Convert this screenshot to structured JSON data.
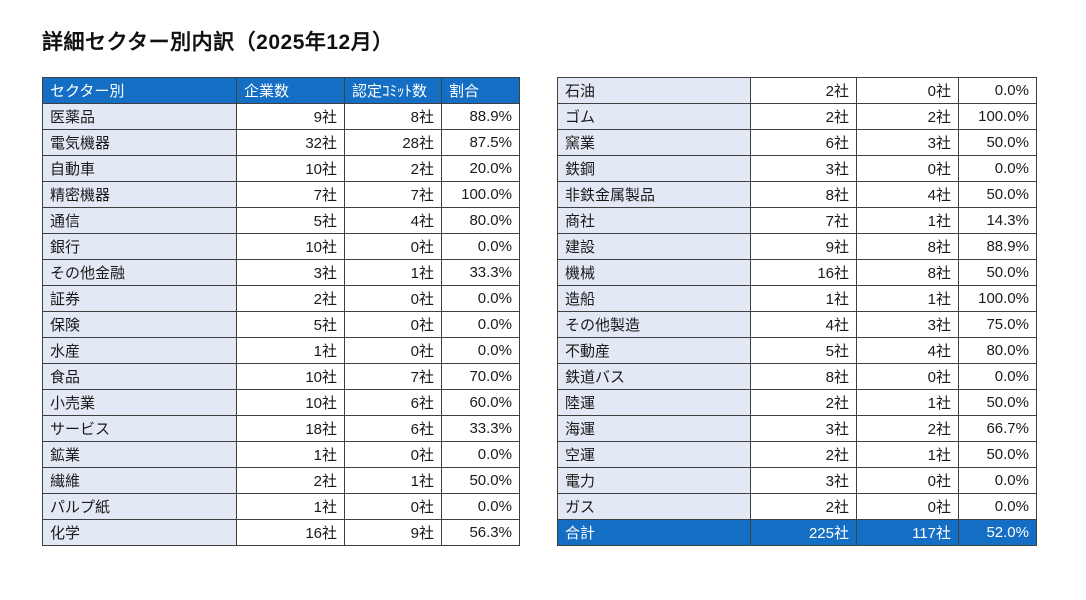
{
  "title": "詳細セクター別内訳（2025年12月）",
  "columns": [
    "セクター別",
    "企業数",
    "認定ｺﾐｯﾄ数",
    "割合"
  ],
  "left_table": {
    "rows": [
      [
        "医薬品",
        "9社",
        "8社",
        "88.9%"
      ],
      [
        "電気機器",
        "32社",
        "28社",
        "87.5%"
      ],
      [
        "自動車",
        "10社",
        "2社",
        "20.0%"
      ],
      [
        "精密機器",
        "7社",
        "7社",
        "100.0%"
      ],
      [
        "通信",
        "5社",
        "4社",
        "80.0%"
      ],
      [
        "銀行",
        "10社",
        "0社",
        "0.0%"
      ],
      [
        "その他金融",
        "3社",
        "1社",
        "33.3%"
      ],
      [
        "証券",
        "2社",
        "0社",
        "0.0%"
      ],
      [
        "保険",
        "5社",
        "0社",
        "0.0%"
      ],
      [
        "水産",
        "1社",
        "0社",
        "0.0%"
      ],
      [
        "食品",
        "10社",
        "7社",
        "70.0%"
      ],
      [
        "小売業",
        "10社",
        "6社",
        "60.0%"
      ],
      [
        "サービス",
        "18社",
        "6社",
        "33.3%"
      ],
      [
        "鉱業",
        "1社",
        "0社",
        "0.0%"
      ],
      [
        "繊維",
        "2社",
        "1社",
        "50.0%"
      ],
      [
        "パルプ紙",
        "1社",
        "0社",
        "0.0%"
      ],
      [
        "化学",
        "16社",
        "9社",
        "56.3%"
      ]
    ]
  },
  "right_table": {
    "rows": [
      [
        "石油",
        "2社",
        "0社",
        "0.0%"
      ],
      [
        "ゴム",
        "2社",
        "2社",
        "100.0%"
      ],
      [
        "窯業",
        "6社",
        "3社",
        "50.0%"
      ],
      [
        "鉄鋼",
        "3社",
        "0社",
        "0.0%"
      ],
      [
        "非鉄金属製品",
        "8社",
        "4社",
        "50.0%"
      ],
      [
        "商社",
        "7社",
        "1社",
        "14.3%"
      ],
      [
        "建設",
        "9社",
        "8社",
        "88.9%"
      ],
      [
        "機械",
        "16社",
        "8社",
        "50.0%"
      ],
      [
        "造船",
        "1社",
        "1社",
        "100.0%"
      ],
      [
        "その他製造",
        "4社",
        "3社",
        "75.0%"
      ],
      [
        "不動産",
        "5社",
        "4社",
        "80.0%"
      ],
      [
        "鉄道バス",
        "8社",
        "0社",
        "0.0%"
      ],
      [
        "陸運",
        "2社",
        "1社",
        "50.0%"
      ],
      [
        "海運",
        "3社",
        "2社",
        "66.7%"
      ],
      [
        "空運",
        "2社",
        "1社",
        "50.0%"
      ],
      [
        "電力",
        "3社",
        "0社",
        "0.0%"
      ],
      [
        "ガス",
        "2社",
        "0社",
        "0.0%"
      ]
    ],
    "total": [
      "合計",
      "225社",
      "117社",
      "52.0%"
    ]
  },
  "colors": {
    "header_bg": "#146EC3",
    "label_bg": "#E3E8F5",
    "border": "#404040",
    "total_bg": "#146EC3"
  }
}
